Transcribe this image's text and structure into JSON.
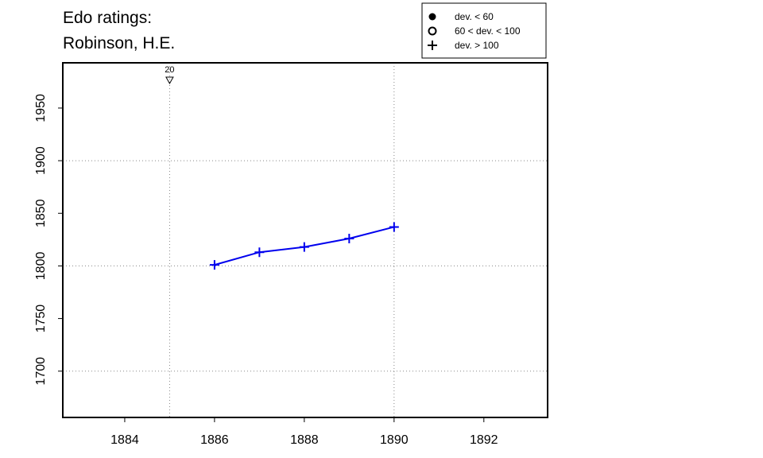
{
  "chart_data": {
    "type": "line",
    "title": "Edo ratings:",
    "subtitle": "Robinson, H.E.",
    "x": [
      1886,
      1887,
      1888,
      1889,
      1890
    ],
    "series": [
      {
        "name": "Robinson, H.E.",
        "color": "#0000ee",
        "marker": "plus",
        "values": [
          1801,
          1813,
          1818,
          1826,
          1837
        ]
      }
    ],
    "xlim": [
      1882.62,
      1893.42
    ],
    "ylim": [
      1656,
      1993
    ],
    "xticks": [
      1884,
      1886,
      1888,
      1890,
      1892
    ],
    "yticks": [
      1700,
      1750,
      1800,
      1850,
      1900,
      1950
    ],
    "grid_x": [
      1885,
      1890
    ],
    "grid_y": [
      1700,
      1800,
      1900
    ],
    "annotations": [
      {
        "x": 1885,
        "text": "20"
      }
    ],
    "legend": [
      {
        "marker": "filled-circle",
        "label": "dev. < 60"
      },
      {
        "marker": "open-circle",
        "label": "60 < dev. < 100"
      },
      {
        "marker": "plus",
        "label": "dev. > 100"
      }
    ],
    "legend_position": "top-right"
  }
}
